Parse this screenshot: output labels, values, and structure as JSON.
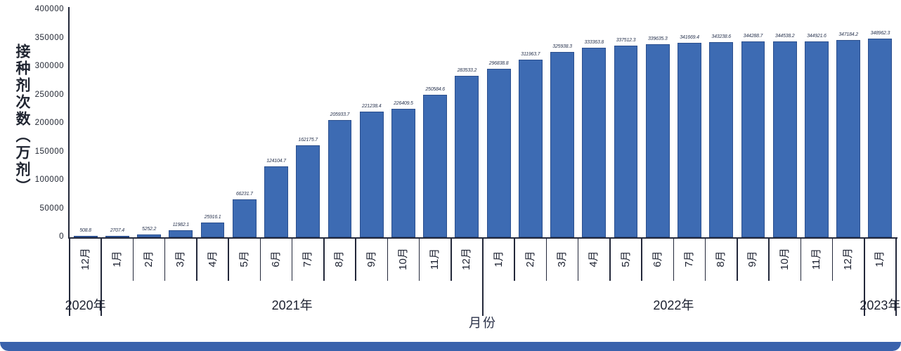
{
  "page": {
    "background": "#ffffff",
    "bottom_bar_color": "#3a62ac"
  },
  "chart_data": {
    "type": "bar",
    "title": "",
    "ylabel": "接种剂次数（万剂）",
    "xlabel": "月份",
    "ylim": [
      0,
      400000
    ],
    "ytick_step": 50000,
    "ytick_labels": [
      "0",
      "50000",
      "100000",
      "150000",
      "200000",
      "250000",
      "300000",
      "350000",
      "400000"
    ],
    "grid": false,
    "legend": "none",
    "bar_color": "#3d6bb3",
    "categories": [
      "12月",
      "1月",
      "2月",
      "3月",
      "4月",
      "5月",
      "6月",
      "7月",
      "8月",
      "9月",
      "10月",
      "11月",
      "12月",
      "1月",
      "2月",
      "3月",
      "4月",
      "5月",
      "6月",
      "7月",
      "8月",
      "9月",
      "10月",
      "11月",
      "12月",
      "1月"
    ],
    "year_groups": [
      {
        "label": "2020年",
        "months": 1
      },
      {
        "label": "2021年",
        "months": 12
      },
      {
        "label": "2022年",
        "months": 12
      },
      {
        "label": "2023年",
        "months": 1
      }
    ],
    "year_tick_indices": [
      0,
      1,
      13,
      25,
      26
    ],
    "values": [
      508.8,
      2707.4,
      5252.2,
      11982.1,
      25916.1,
      66231.7,
      124104.7,
      162175.7,
      205933.7,
      221238.4,
      226409.5,
      250584.6,
      283533.2,
      296838.8,
      311963.7,
      325938.3,
      333363.8,
      337512.3,
      339635.3,
      341669.4,
      343238.6,
      344288.7,
      344538.2,
      344921.6,
      347184.2,
      348962.3
    ],
    "value_labels": [
      "508.8",
      "2707.4",
      "5252.2",
      "11982.1",
      "25916.1",
      "66231.7",
      "124104.7",
      "162175.7",
      "205933.7",
      "221238.4",
      "226409.5",
      "250584.6",
      "283533.2",
      "296838.8",
      "311963.7",
      "325938.3",
      "333363.8",
      "337512.3",
      "339635.3",
      "341669.4",
      "343238.6",
      "344288.7",
      "344538.2",
      "344921.6",
      "347184.2",
      "348962.3"
    ]
  }
}
